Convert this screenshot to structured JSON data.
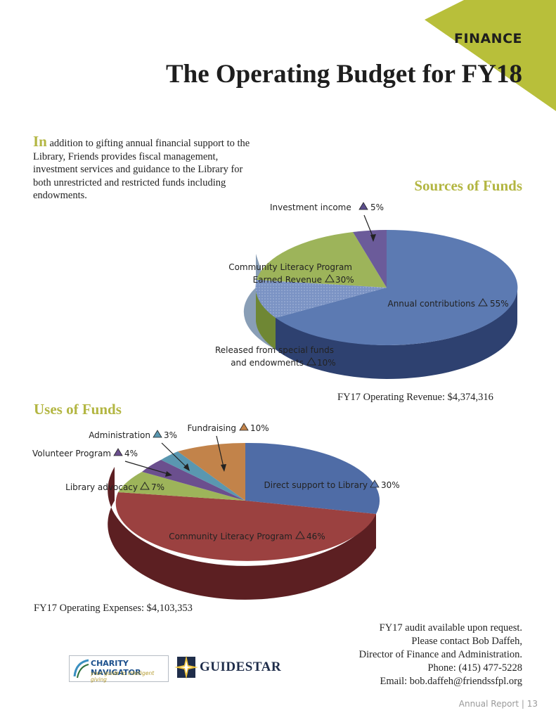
{
  "header": {
    "section": "FINANCE",
    "title": "The Operating Budget for FY18"
  },
  "intro": {
    "lead": "In",
    "body": " addition to gifting annual financial support to the Library, Friends provides fiscal management, investment services and guidance to the Library for both unrestricted and restricted funds including endowments."
  },
  "colors": {
    "accent_green": "#b3b642",
    "blue": "#5c7ab2",
    "green": "#9db45a",
    "purple": "#6b5b9a",
    "red": "#9b4140",
    "teal": "#5a97b0",
    "orange": "#c2834a"
  },
  "sources": {
    "heading": "Sources of Funds",
    "caption": "FY17 Operating Revenue:   $4,374,316",
    "labels": {
      "investment": "Investment income",
      "investment_pct": "5%",
      "literacy_line1": "Community Literacy Program",
      "literacy_line2": "Earned Revenue",
      "literacy_pct": "30%",
      "annual": "Annual contributions",
      "annual_pct": "55%",
      "released_line1": "Released from special funds",
      "released_line2": "and endowments",
      "released_pct": "10%"
    }
  },
  "uses": {
    "heading": "Uses of Funds",
    "caption": "FY17 Operating Expenses:  $4,103,353",
    "labels": {
      "fundraising": "Fundraising",
      "fundraising_pct": "10%",
      "administration": "Administration",
      "administration_pct": "3%",
      "volunteer": "Volunteer Program",
      "volunteer_pct": "4%",
      "advocacy": "Library advocacy",
      "advocacy_pct": "7%",
      "direct": "Direct support to Library",
      "direct_pct": "30%",
      "literacy": "Community Literacy Program",
      "literacy_pct": "46%"
    }
  },
  "chart_data": [
    {
      "type": "pie",
      "title": "Sources of Funds",
      "categories": [
        "Annual contributions",
        "Released from special funds and endowments",
        "Community Literacy Program Earned Revenue",
        "Investment income"
      ],
      "values": [
        55,
        10,
        30,
        5
      ],
      "unit": "%"
    },
    {
      "type": "pie",
      "title": "Uses of Funds",
      "categories": [
        "Direct support to Library",
        "Community Literacy Program",
        "Library advocacy",
        "Volunteer Program",
        "Administration",
        "Fundraising"
      ],
      "values": [
        30,
        46,
        7,
        4,
        3,
        10
      ],
      "unit": "%"
    }
  ],
  "contact": {
    "line1": "FY17 audit available upon request.",
    "line2": "Please contact Bob Daffeh,",
    "line3": "Director of Finance and Administration.",
    "line4": "Phone: (415) 477-5228",
    "line5": "Email: bob.daffeh@friendssfpl.org"
  },
  "logos": {
    "charity_navigator": "CHARITY NAVIGATOR",
    "charity_tagline": "your guide to intelligent giving",
    "guidestar": "GUIDESTAR"
  },
  "footer": "Annual Report | 13"
}
